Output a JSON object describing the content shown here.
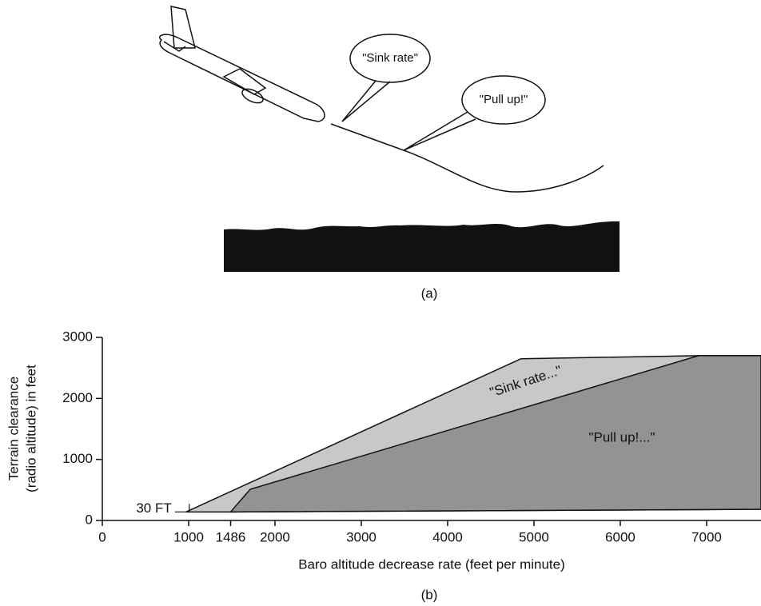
{
  "illustration": {
    "callouts": [
      "\"Sink rate\"",
      "\"Pull up!\""
    ],
    "caption": "(a)"
  },
  "chart_data": {
    "type": "area",
    "caption": "(b)",
    "xlabel": "Baro altitude decrease rate (feet per minute)",
    "ylabel": [
      "Terrain clearance",
      "(radio altitude) in feet"
    ],
    "annotations": [
      "30 FT"
    ],
    "xlim": [
      0,
      7630
    ],
    "xticks": [
      0,
      1000,
      1486,
      2000,
      3000,
      4000,
      5000,
      6000,
      7000
    ],
    "ylim": [
      0,
      3000
    ],
    "yticks": [
      0,
      1000,
      2000,
      3000
    ],
    "series": [
      {
        "name": "\"Sink rate...\"",
        "color": "#c8c8c8",
        "x": [
          970,
          4850,
          6907,
          7630,
          7630,
          1486
        ],
        "values": [
          140,
          2650,
          2700,
          2700,
          183,
          140
        ]
      },
      {
        "name": "\"Pull up!...\"",
        "color": "#939393",
        "x": [
          1486,
          1713,
          6907,
          7630,
          7630
        ],
        "values": [
          140,
          511,
          2700,
          2700,
          183
        ]
      }
    ]
  }
}
